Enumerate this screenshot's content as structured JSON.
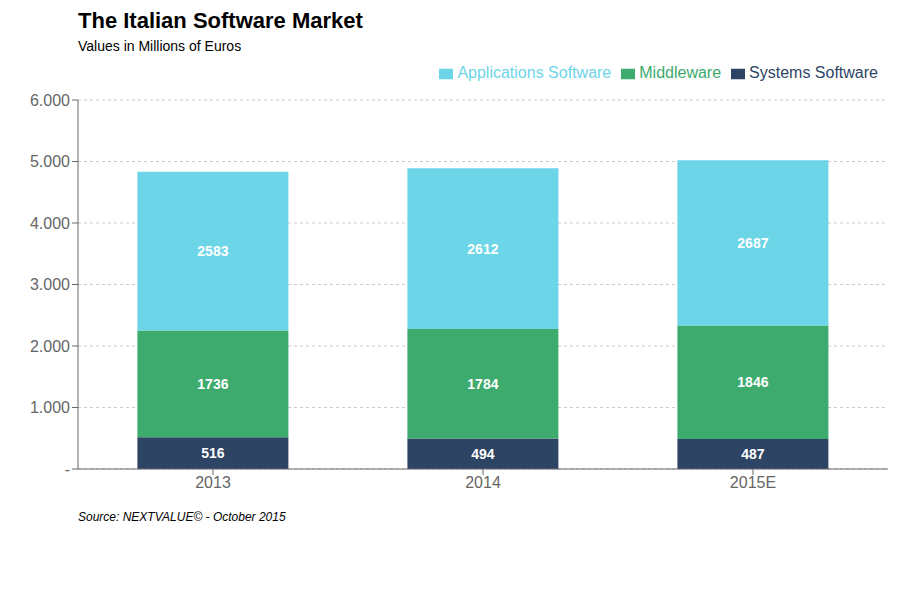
{
  "chart_data": {
    "type": "bar",
    "title": "The Italian Software Market",
    "subtitle": "Values in Millions of Euros",
    "categories": [
      "2013",
      "2014",
      "2015E"
    ],
    "series": [
      {
        "name": "Systems Software",
        "color": "#2e4464",
        "values": [
          516,
          494,
          487
        ]
      },
      {
        "name": "Middleware",
        "color": "#3daa6e",
        "values": [
          1736,
          1784,
          1846
        ]
      },
      {
        "name": "Applications Software",
        "color": "#6dd5e8",
        "values": [
          2583,
          2612,
          2687
        ]
      }
    ],
    "stacked": true,
    "data_labels": true,
    "ylim": [
      0,
      6000
    ],
    "yticks": [
      {
        "value": 0,
        "label": "-"
      },
      {
        "value": 1000,
        "label": "1.000"
      },
      {
        "value": 2000,
        "label": "2.000"
      },
      {
        "value": 3000,
        "label": "3.000"
      },
      {
        "value": 4000,
        "label": "4.000"
      },
      {
        "value": 5000,
        "label": "5.000"
      },
      {
        "value": 6000,
        "label": "6.000"
      }
    ],
    "grid": true,
    "legend": "top right",
    "annotations": [
      "Source: NEXTVALUE© - October 2015"
    ]
  }
}
